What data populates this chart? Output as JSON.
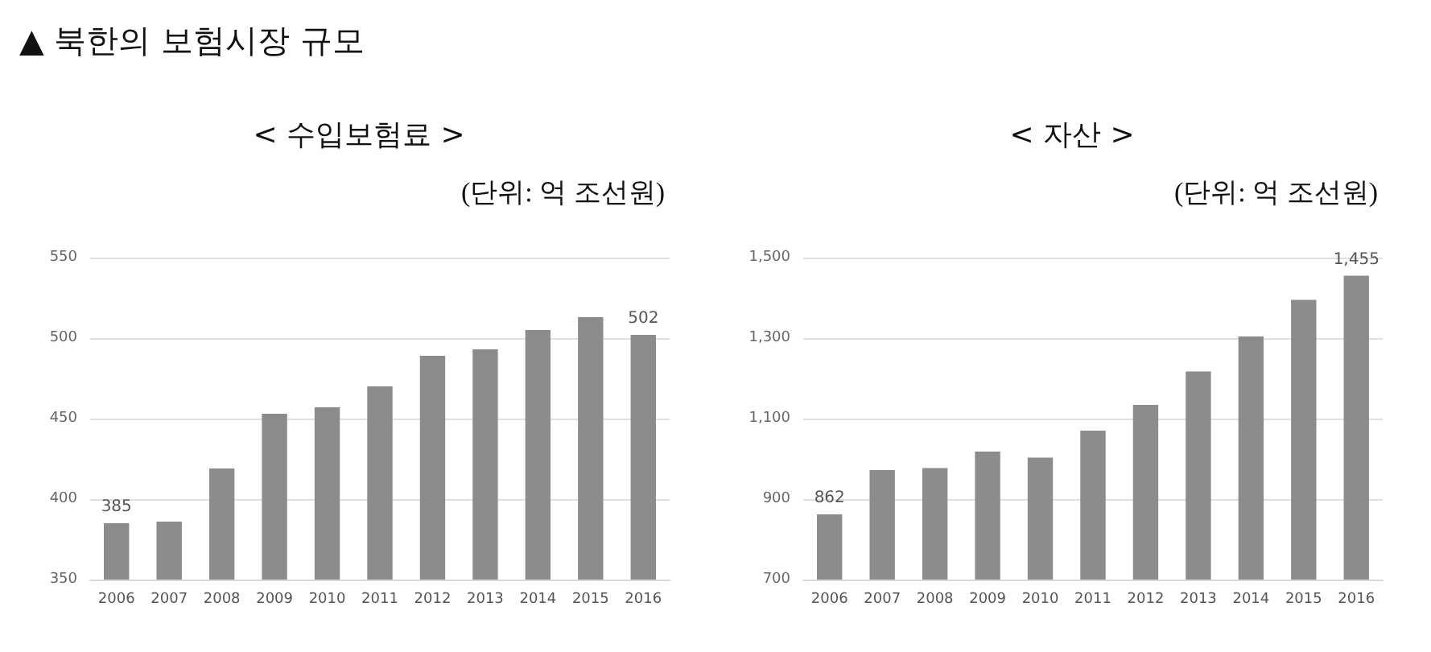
{
  "chart_data": [
    {
      "type": "bar",
      "title": "< 수입보험료 >",
      "subtitle": "(단위: 억 조선원)",
      "annotations": [
        "▲ 북한의 보험시장 규모"
      ],
      "categories": [
        "2006",
        "2007",
        "2008",
        "2009",
        "2010",
        "2011",
        "2012",
        "2013",
        "2014",
        "2015",
        "2016"
      ],
      "values": [
        385,
        386,
        419,
        453,
        457,
        470,
        489,
        493,
        505,
        513,
        502
      ],
      "value_labels": [
        "385",
        null,
        null,
        null,
        null,
        null,
        null,
        null,
        null,
        null,
        "502"
      ],
      "color": "#8c8c8c",
      "ylim": [
        350,
        550
      ],
      "yticks": [
        350,
        400,
        450,
        500,
        550
      ],
      "grid": "y"
    },
    {
      "type": "bar",
      "title": "< 자산 >",
      "subtitle": "(단위: 억 조선원)",
      "categories": [
        "2006",
        "2007",
        "2008",
        "2009",
        "2010",
        "2011",
        "2012",
        "2013",
        "2014",
        "2015",
        "2016"
      ],
      "values": [
        862,
        972,
        977,
        1018,
        1003,
        1070,
        1134,
        1217,
        1304,
        1395,
        1455
      ],
      "value_labels": [
        "862",
        null,
        null,
        null,
        null,
        null,
        null,
        null,
        null,
        null,
        "1,455"
      ],
      "color": "#8c8c8c",
      "ylim": [
        700,
        1500
      ],
      "yticks": [
        {
          "value": 700,
          "label": "700"
        },
        {
          "value": 900,
          "label": "900"
        },
        {
          "value": 1100,
          "label": "1,100"
        },
        {
          "value": 1300,
          "label": "1,300"
        },
        {
          "value": 1500,
          "label": "1,500"
        }
      ],
      "grid": "y"
    }
  ]
}
